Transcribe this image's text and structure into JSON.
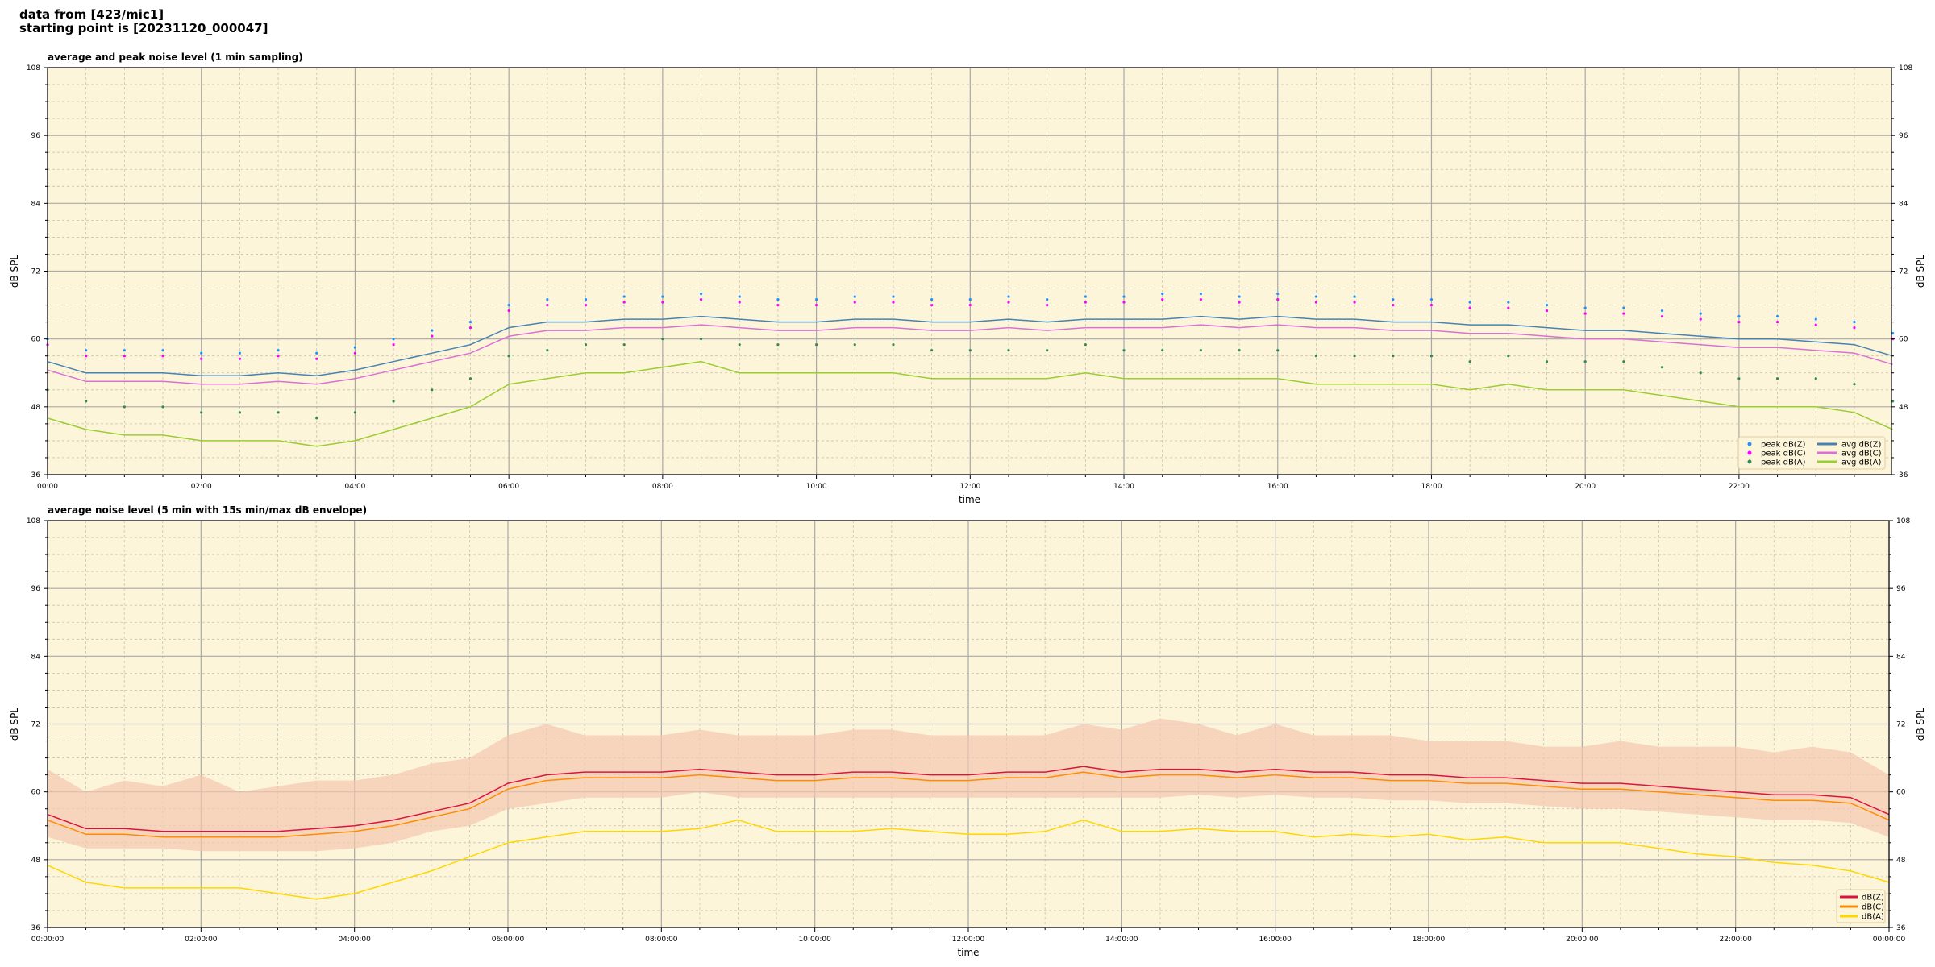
{
  "header": {
    "line1": "data from [423/mic1]",
    "line2": "starting point is [20231120_000047]"
  },
  "chart_data": [
    {
      "type": "line",
      "title": "average and peak noise level (1 min sampling)",
      "xlabel": "time",
      "ylabel": "dB SPL",
      "ylim": [
        36,
        108
      ],
      "xlim_hours": [
        0,
        24
      ],
      "yticks": [
        36,
        48,
        60,
        72,
        84,
        96,
        108
      ],
      "xticks": [
        "00:00",
        "02:00",
        "04:00",
        "06:00",
        "08:00",
        "10:00",
        "12:00",
        "14:00",
        "16:00",
        "18:00",
        "20:00",
        "22:00"
      ],
      "grid": true,
      "background": "#fdf5d9",
      "legend": "bottom-right",
      "x_hours": [
        0,
        0.5,
        1,
        1.5,
        2,
        2.5,
        3,
        3.5,
        4,
        4.5,
        5,
        5.5,
        6,
        6.5,
        7,
        7.5,
        8,
        8.5,
        9,
        9.5,
        10,
        10.5,
        11,
        11.5,
        12,
        12.5,
        13,
        13.5,
        14,
        14.5,
        15,
        15.5,
        16,
        16.5,
        17,
        17.5,
        18,
        18.5,
        19,
        19.5,
        20,
        20.5,
        21,
        21.5,
        22,
        22.5,
        23,
        23.5,
        24
      ],
      "series": [
        {
          "name": "peak dB(Z)",
          "kind": "scatter",
          "color": "#1e90ff",
          "values": [
            60,
            58,
            58,
            58,
            57.5,
            57.5,
            58,
            57.5,
            58.5,
            60,
            61.5,
            63,
            66,
            67,
            67,
            67.5,
            67.5,
            68,
            67.5,
            67,
            67,
            67.5,
            67.5,
            67,
            67,
            67.5,
            67,
            67.5,
            67.5,
            68,
            68,
            67.5,
            68,
            67.5,
            67.5,
            67,
            67,
            66.5,
            66.5,
            66,
            65.5,
            65.5,
            65,
            64.5,
            64,
            64,
            63.5,
            63,
            61
          ]
        },
        {
          "name": "peak dB(C)",
          "kind": "scatter",
          "color": "#ff00ff",
          "values": [
            59,
            57,
            57,
            57,
            56.5,
            56.5,
            57,
            56.5,
            57.5,
            59,
            60.5,
            62,
            65,
            66,
            66,
            66.5,
            66.5,
            67,
            66.5,
            66,
            66,
            66.5,
            66.5,
            66,
            66,
            66.5,
            66,
            66.5,
            66.5,
            67,
            67,
            66.5,
            67,
            66.5,
            66.5,
            66,
            66,
            65.5,
            65.5,
            65,
            64.5,
            64.5,
            64,
            63.5,
            63,
            63,
            62.5,
            62,
            60
          ]
        },
        {
          "name": "peak dB(A)",
          "kind": "scatter",
          "color": "#2e8b57",
          "values": [
            51,
            49,
            48,
            48,
            47,
            47,
            47,
            46,
            47,
            49,
            51,
            53,
            57,
            58,
            59,
            59,
            60,
            60,
            59,
            59,
            59,
            59,
            59,
            58,
            58,
            58,
            58,
            59,
            58,
            58,
            58,
            58,
            58,
            57,
            57,
            57,
            57,
            56,
            57,
            56,
            56,
            56,
            55,
            54,
            53,
            53,
            53,
            52,
            49
          ]
        },
        {
          "name": "avg dB(Z)",
          "kind": "line",
          "color": "#4682b4",
          "values": [
            56,
            54,
            54,
            54,
            53.5,
            53.5,
            54,
            53.5,
            54.5,
            56,
            57.5,
            59,
            62,
            63,
            63,
            63.5,
            63.5,
            64,
            63.5,
            63,
            63,
            63.5,
            63.5,
            63,
            63,
            63.5,
            63,
            63.5,
            63.5,
            63.5,
            64,
            63.5,
            64,
            63.5,
            63.5,
            63,
            63,
            62.5,
            62.5,
            62,
            61.5,
            61.5,
            61,
            60.5,
            60,
            60,
            59.5,
            59,
            57
          ]
        },
        {
          "name": "avg dB(C)",
          "kind": "line",
          "color": "#da70d6",
          "values": [
            54.5,
            52.5,
            52.5,
            52.5,
            52,
            52,
            52.5,
            52,
            53,
            54.5,
            56,
            57.5,
            60.5,
            61.5,
            61.5,
            62,
            62,
            62.5,
            62,
            61.5,
            61.5,
            62,
            62,
            61.5,
            61.5,
            62,
            61.5,
            62,
            62,
            62,
            62.5,
            62,
            62.5,
            62,
            62,
            61.5,
            61.5,
            61,
            61,
            60.5,
            60,
            60,
            59.5,
            59,
            58.5,
            58.5,
            58,
            57.5,
            55.5
          ]
        },
        {
          "name": "avg dB(A)",
          "kind": "line",
          "color": "#9acd32",
          "values": [
            46,
            44,
            43,
            43,
            42,
            42,
            42,
            41,
            42,
            44,
            46,
            48,
            52,
            53,
            54,
            54,
            55,
            56,
            54,
            54,
            54,
            54,
            54,
            53,
            53,
            53,
            53,
            54,
            53,
            53,
            53,
            53,
            53,
            52,
            52,
            52,
            52,
            51,
            52,
            51,
            51,
            51,
            50,
            49,
            48,
            48,
            48,
            47,
            44
          ]
        }
      ]
    },
    {
      "type": "line",
      "title": "average noise level (5 min with 15s min/max dB envelope)",
      "xlabel": "time",
      "ylabel": "dB SPL",
      "ylim": [
        36,
        108
      ],
      "xlim_hours": [
        0,
        24
      ],
      "yticks": [
        36,
        48,
        60,
        72,
        84,
        96,
        108
      ],
      "xticks": [
        "00:00:00",
        "02:00:00",
        "04:00:00",
        "06:00:00",
        "08:00:00",
        "10:00:00",
        "12:00:00",
        "14:00:00",
        "16:00:00",
        "18:00:00",
        "20:00:00",
        "22:00:00",
        "00:00:00"
      ],
      "grid": true,
      "background": "#fdf5d9",
      "legend": "bottom-right",
      "x_hours": [
        0,
        0.5,
        1,
        1.5,
        2,
        2.5,
        3,
        3.5,
        4,
        4.5,
        5,
        5.5,
        6,
        6.5,
        7,
        7.5,
        8,
        8.5,
        9,
        9.5,
        10,
        10.5,
        11,
        11.5,
        12,
        12.5,
        13,
        13.5,
        14,
        14.5,
        15,
        15.5,
        16,
        16.5,
        17,
        17.5,
        18,
        18.5,
        19,
        19.5,
        20,
        20.5,
        21,
        21.5,
        22,
        22.5,
        23,
        23.5,
        24
      ],
      "envelope": {
        "color": "#f4c7b0",
        "max": [
          64,
          60,
          62,
          61,
          63,
          60,
          61,
          62,
          62,
          63,
          65,
          66,
          70,
          72,
          70,
          70,
          70,
          71,
          70,
          70,
          70,
          71,
          71,
          70,
          70,
          70,
          70,
          72,
          71,
          73,
          72,
          70,
          72,
          70,
          70,
          70,
          69,
          69,
          69,
          68,
          68,
          69,
          68,
          68,
          68,
          67,
          68,
          67,
          63
        ],
        "min": [
          52,
          50,
          50,
          50,
          49.5,
          49.5,
          49.5,
          49.5,
          50,
          51,
          53,
          54,
          57,
          58,
          59,
          59,
          59,
          60,
          59,
          59,
          59,
          59,
          59,
          59,
          59,
          59,
          59,
          59,
          59,
          59,
          59.5,
          59,
          59.5,
          59,
          59,
          58.5,
          58.5,
          58,
          58,
          57.5,
          57,
          57,
          56.5,
          56,
          55.5,
          55,
          55,
          54.5,
          52
        ]
      },
      "series": [
        {
          "name": "dB(Z)",
          "color": "#dc143c",
          "values": [
            56,
            53.5,
            53.5,
            53,
            53,
            53,
            53,
            53.5,
            54,
            55,
            56.5,
            58,
            61.5,
            63,
            63.5,
            63.5,
            63.5,
            64,
            63.5,
            63,
            63,
            63.5,
            63.5,
            63,
            63,
            63.5,
            63.5,
            64.5,
            63.5,
            64,
            64,
            63.5,
            64,
            63.5,
            63.5,
            63,
            63,
            62.5,
            62.5,
            62,
            61.5,
            61.5,
            61,
            60.5,
            60,
            59.5,
            59.5,
            59,
            56
          ]
        },
        {
          "name": "dB(C)",
          "color": "#ff8c00",
          "values": [
            55,
            52.5,
            52.5,
            52,
            52,
            52,
            52,
            52.5,
            53,
            54,
            55.5,
            57,
            60.5,
            62,
            62.5,
            62.5,
            62.5,
            63,
            62.5,
            62,
            62,
            62.5,
            62.5,
            62,
            62,
            62.5,
            62.5,
            63.5,
            62.5,
            63,
            63,
            62.5,
            63,
            62.5,
            62.5,
            62,
            62,
            61.5,
            61.5,
            61,
            60.5,
            60.5,
            60,
            59.5,
            59,
            58.5,
            58.5,
            58,
            55
          ]
        },
        {
          "name": "dB(A)",
          "color": "#ffd700",
          "values": [
            47,
            44,
            43,
            43,
            43,
            43,
            42,
            41,
            42,
            44,
            46,
            48.5,
            51,
            52,
            53,
            53,
            53,
            53.5,
            55,
            53,
            53,
            53,
            53.5,
            53,
            52.5,
            52.5,
            53,
            55,
            53,
            53,
            53.5,
            53,
            53,
            52,
            52.5,
            52,
            52.5,
            51.5,
            52,
            51,
            51,
            51,
            50,
            49,
            48.5,
            47.5,
            47,
            46,
            44
          ]
        }
      ]
    }
  ]
}
